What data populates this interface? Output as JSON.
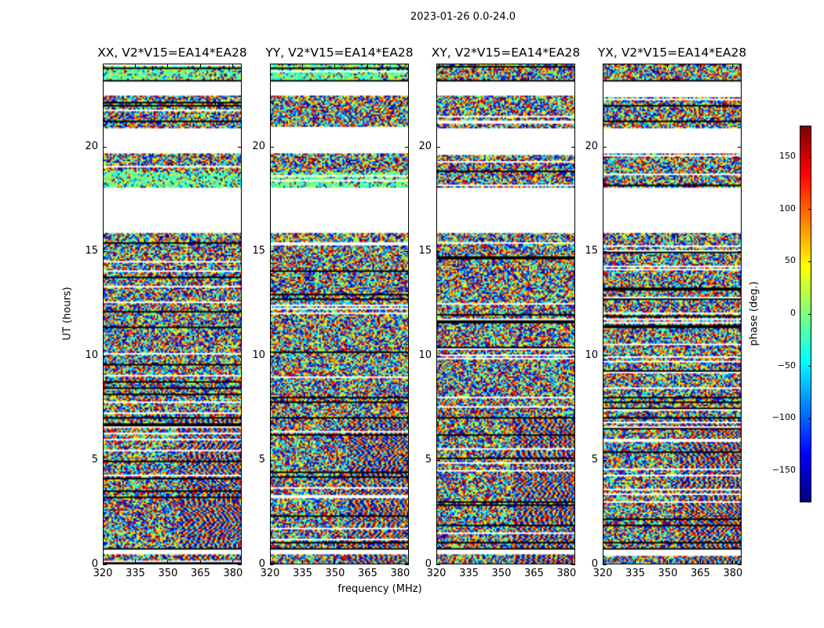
{
  "chart_data": {
    "type": "heatmap",
    "title": "2023-01-26 0.0-24.0",
    "xlabel": "frequency (MHz)",
    "ylabel": "UT (hours)",
    "xlim": [
      320,
      384
    ],
    "ylim": [
      0,
      24
    ],
    "xticks": [
      320,
      335,
      350,
      365,
      380
    ],
    "yticks": [
      0,
      5,
      10,
      15,
      20
    ],
    "colorbar": {
      "label": "phase (deg.)",
      "range": [
        -180,
        180
      ],
      "ticks": [
        -150,
        -100,
        -50,
        0,
        50,
        100,
        150
      ],
      "colormap": "jet"
    },
    "blank_ut_ranges": [
      [
        22.5,
        23.2
      ],
      [
        19.75,
        20.9
      ],
      [
        15.87,
        18.05
      ],
      [
        0.45,
        0.7
      ]
    ],
    "flag_lines_ut": [
      23.2,
      7.0,
      0.7
    ],
    "panels": [
      {
        "title": "XX, V2*V15=EA14*EA28",
        "pol": "XX"
      },
      {
        "title": "YY, V2*V15=EA14*EA28",
        "pol": "YY"
      },
      {
        "title": "XY, V2*V15=EA14*EA28",
        "pol": "XY"
      },
      {
        "title": "YX, V2*V15=EA14*EA28",
        "pol": "YX"
      }
    ]
  }
}
